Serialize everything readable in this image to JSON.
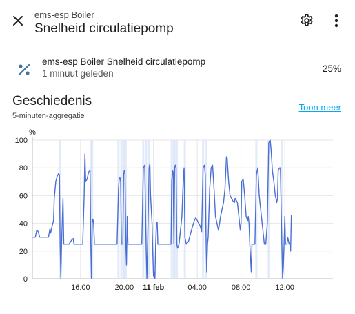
{
  "header": {
    "subtitle": "ems-esp Boiler",
    "title": "Snelheid circulatiepomp",
    "close_icon": "close-icon",
    "settings_icon": "gear-icon",
    "more_icon": "more-vertical-icon"
  },
  "entity": {
    "icon": "percent-icon",
    "name": "ems-esp Boiler Snelheid circulatiepomp",
    "last_changed": "1 minuut geleden",
    "value": "25%"
  },
  "history": {
    "title": "Geschiedenis",
    "subtitle": "5-minuten-aggregatie",
    "show_more": "Toon meer"
  },
  "colors": {
    "line": "#4a6fd4",
    "band": "#d7e3f8",
    "link": "#03a9f4",
    "grid": "#e6e6e6"
  },
  "chart_data": {
    "type": "line",
    "ylabel": "%",
    "ylim": [
      0,
      100
    ],
    "yticks": [
      0,
      20,
      40,
      60,
      80,
      100
    ],
    "xlim": [
      -8.3,
      12.3
    ],
    "xticks": [
      {
        "x": -5,
        "label": "16:00",
        "bold": false
      },
      {
        "x": -2,
        "label": "20:00",
        "bold": false
      },
      {
        "x": 0,
        "label": "11 feb",
        "bold": true
      },
      {
        "x": 3,
        "label": "04:00",
        "bold": false
      },
      {
        "x": 6,
        "label": "08:00",
        "bold": false
      },
      {
        "x": 9,
        "label": "12:00",
        "bold": false
      }
    ],
    "grid": true,
    "series": [
      {
        "values": [
          [
            -8.3,
            30
          ],
          [
            -8.1,
            30
          ],
          [
            -8.0,
            35
          ],
          [
            -7.9,
            34
          ],
          [
            -7.8,
            30
          ],
          [
            -7.6,
            30
          ],
          [
            -7.4,
            30
          ],
          [
            -7.2,
            30
          ],
          [
            -7.1,
            36
          ],
          [
            -7.05,
            33
          ],
          [
            -6.95,
            38
          ],
          [
            -6.85,
            42
          ],
          [
            -6.8,
            58
          ],
          [
            -6.7,
            70
          ],
          [
            -6.6,
            74
          ],
          [
            -6.5,
            76
          ],
          [
            -6.45,
            75
          ],
          [
            -6.4,
            25
          ],
          [
            -6.35,
            0
          ],
          [
            -6.3,
            25
          ],
          [
            -6.2,
            58
          ],
          [
            -6.15,
            25
          ],
          [
            -6.05,
            25
          ],
          [
            -5.8,
            25
          ],
          [
            -5.6,
            28
          ],
          [
            -5.5,
            29
          ],
          [
            -5.45,
            25
          ],
          [
            -5.2,
            25
          ],
          [
            -4.85,
            25
          ],
          [
            -4.75,
            60
          ],
          [
            -4.7,
            90
          ],
          [
            -4.65,
            70
          ],
          [
            -4.55,
            72
          ],
          [
            -4.45,
            77
          ],
          [
            -4.35,
            78
          ],
          [
            -4.3,
            25
          ],
          [
            -4.25,
            0
          ],
          [
            -4.2,
            40
          ],
          [
            -4.15,
            43
          ],
          [
            -4.1,
            40
          ],
          [
            -4.05,
            25
          ],
          [
            -3.8,
            25
          ],
          [
            -3.5,
            25
          ],
          [
            -3.0,
            25
          ],
          [
            -2.6,
            25
          ],
          [
            -2.5,
            25
          ],
          [
            -2.4,
            65
          ],
          [
            -2.35,
            72
          ],
          [
            -2.3,
            73
          ],
          [
            -2.25,
            70
          ],
          [
            -2.2,
            25
          ],
          [
            -2.15,
            25
          ],
          [
            -2.1,
            25
          ],
          [
            -2.05,
            75
          ],
          [
            -2.0,
            78
          ],
          [
            -1.95,
            76
          ],
          [
            -1.9,
            25
          ],
          [
            -1.85,
            10
          ],
          [
            -1.8,
            45
          ],
          [
            -1.75,
            25
          ],
          [
            -1.5,
            25
          ],
          [
            -1.2,
            25
          ],
          [
            -0.9,
            25
          ],
          [
            -0.8,
            25
          ],
          [
            -0.7,
            80
          ],
          [
            -0.6,
            82
          ],
          [
            -0.5,
            20
          ],
          [
            -0.45,
            0
          ],
          [
            -0.4,
            25
          ],
          [
            -0.3,
            80
          ],
          [
            -0.25,
            83
          ],
          [
            -0.2,
            60
          ],
          [
            -0.1,
            40
          ],
          [
            -0.05,
            20
          ],
          [
            0.0,
            2
          ],
          [
            0.05,
            5
          ],
          [
            0.1,
            0
          ],
          [
            0.15,
            25
          ],
          [
            0.2,
            40
          ],
          [
            0.25,
            41
          ],
          [
            0.3,
            25
          ],
          [
            0.5,
            25
          ],
          [
            0.8,
            25
          ],
          [
            1.0,
            25
          ],
          [
            1.2,
            25
          ],
          [
            1.25,
            70
          ],
          [
            1.3,
            78
          ],
          [
            1.35,
            77
          ],
          [
            1.4,
            25
          ],
          [
            1.45,
            80
          ],
          [
            1.5,
            82
          ],
          [
            1.55,
            80
          ],
          [
            1.6,
            25
          ],
          [
            1.65,
            22
          ],
          [
            1.75,
            25
          ],
          [
            1.85,
            35
          ],
          [
            1.95,
            45
          ],
          [
            2.05,
            75
          ],
          [
            2.1,
            80
          ],
          [
            2.15,
            30
          ],
          [
            2.25,
            25
          ],
          [
            2.4,
            27
          ],
          [
            2.6,
            35
          ],
          [
            2.8,
            42
          ],
          [
            2.9,
            44
          ],
          [
            3.0,
            42
          ],
          [
            3.1,
            40
          ],
          [
            3.2,
            38
          ],
          [
            3.3,
            34
          ],
          [
            3.4,
            80
          ],
          [
            3.5,
            82
          ],
          [
            3.55,
            75
          ],
          [
            3.6,
            30
          ],
          [
            3.65,
            5
          ],
          [
            3.7,
            25
          ],
          [
            3.75,
            30
          ],
          [
            3.85,
            65
          ],
          [
            3.95,
            80
          ],
          [
            4.05,
            82
          ],
          [
            4.15,
            65
          ],
          [
            4.25,
            45
          ],
          [
            4.35,
            40
          ],
          [
            4.45,
            35
          ],
          [
            4.5,
            38
          ],
          [
            4.6,
            45
          ],
          [
            4.7,
            50
          ],
          [
            4.8,
            55
          ],
          [
            4.9,
            65
          ],
          [
            5.0,
            88
          ],
          [
            5.05,
            87
          ],
          [
            5.15,
            70
          ],
          [
            5.25,
            60
          ],
          [
            5.35,
            58
          ],
          [
            5.45,
            56
          ],
          [
            5.55,
            55
          ],
          [
            5.6,
            58
          ],
          [
            5.65,
            57
          ],
          [
            5.75,
            55
          ],
          [
            5.85,
            45
          ],
          [
            5.95,
            35
          ],
          [
            6.0,
            40
          ],
          [
            6.05,
            70
          ],
          [
            6.15,
            72
          ],
          [
            6.25,
            60
          ],
          [
            6.35,
            45
          ],
          [
            6.45,
            42
          ],
          [
            6.5,
            45
          ],
          [
            6.55,
            40
          ],
          [
            6.6,
            25
          ],
          [
            6.7,
            5
          ],
          [
            6.75,
            25
          ],
          [
            6.85,
            25
          ],
          [
            6.95,
            25
          ],
          [
            7.05,
            75
          ],
          [
            7.15,
            80
          ],
          [
            7.25,
            60
          ],
          [
            7.35,
            50
          ],
          [
            7.45,
            40
          ],
          [
            7.5,
            35
          ],
          [
            7.6,
            25
          ],
          [
            7.7,
            25
          ],
          [
            7.8,
            40
          ],
          [
            7.9,
            98
          ],
          [
            8.0,
            100
          ],
          [
            8.05,
            95
          ],
          [
            8.15,
            78
          ],
          [
            8.25,
            70
          ],
          [
            8.35,
            60
          ],
          [
            8.45,
            55
          ],
          [
            8.5,
            58
          ],
          [
            8.55,
            78
          ],
          [
            8.65,
            80
          ],
          [
            8.7,
            80
          ],
          [
            8.8,
            25
          ],
          [
            8.85,
            0
          ],
          [
            8.9,
            8
          ],
          [
            8.95,
            25
          ],
          [
            9.0,
            45
          ],
          [
            9.05,
            25
          ],
          [
            9.15,
            25
          ],
          [
            9.2,
            30
          ],
          [
            9.3,
            25
          ],
          [
            9.35,
            25
          ],
          [
            9.4,
            20
          ],
          [
            9.45,
            46
          ]
        ]
      }
    ]
  }
}
